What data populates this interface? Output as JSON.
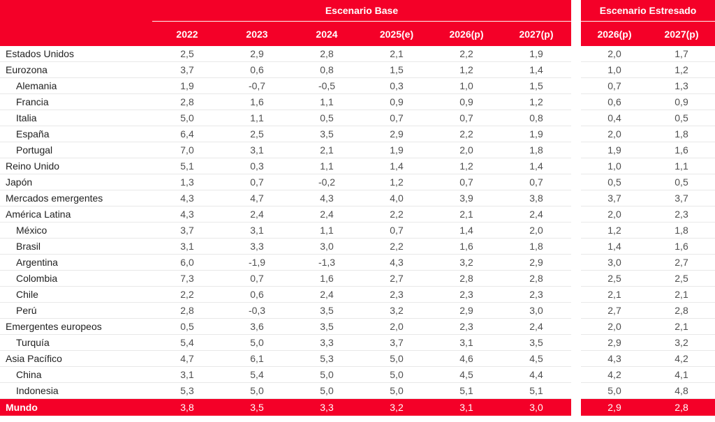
{
  "header": {
    "base": {
      "title": "Escenario Base",
      "years": [
        "2022",
        "2023",
        "2024",
        "2025(e)",
        "2026(p)",
        "2027(p)"
      ]
    },
    "stressed": {
      "title": "Escenario Estresado",
      "years": [
        "2026(p)",
        "2027(p)"
      ]
    }
  },
  "table": {
    "rows": [
      {
        "label": "Estados Unidos",
        "indent": false,
        "base": [
          "2,5",
          "2,9",
          "2,8",
          "2,1",
          "2,2",
          "1,9"
        ],
        "stressed": [
          "2,0",
          "1,7"
        ]
      },
      {
        "label": "Eurozona",
        "indent": false,
        "base": [
          "3,7",
          "0,6",
          "0,8",
          "1,5",
          "1,2",
          "1,4"
        ],
        "stressed": [
          "1,0",
          "1,2"
        ]
      },
      {
        "label": "Alemania",
        "indent": true,
        "base": [
          "1,9",
          "-0,7",
          "-0,5",
          "0,3",
          "1,0",
          "1,5"
        ],
        "stressed": [
          "0,7",
          "1,3"
        ]
      },
      {
        "label": "Francia",
        "indent": true,
        "base": [
          "2,8",
          "1,6",
          "1,1",
          "0,9",
          "0,9",
          "1,2"
        ],
        "stressed": [
          "0,6",
          "0,9"
        ]
      },
      {
        "label": "Italia",
        "indent": true,
        "base": [
          "5,0",
          "1,1",
          "0,5",
          "0,7",
          "0,7",
          "0,8"
        ],
        "stressed": [
          "0,4",
          "0,5"
        ]
      },
      {
        "label": "España",
        "indent": true,
        "base": [
          "6,4",
          "2,5",
          "3,5",
          "2,9",
          "2,2",
          "1,9"
        ],
        "stressed": [
          "2,0",
          "1,8"
        ]
      },
      {
        "label": "Portugal",
        "indent": true,
        "base": [
          "7,0",
          "3,1",
          "2,1",
          "1,9",
          "2,0",
          "1,8"
        ],
        "stressed": [
          "1,9",
          "1,6"
        ]
      },
      {
        "label": "Reino Unido",
        "indent": false,
        "base": [
          "5,1",
          "0,3",
          "1,1",
          "1,4",
          "1,2",
          "1,4"
        ],
        "stressed": [
          "1,0",
          "1,1"
        ]
      },
      {
        "label": "Japón",
        "indent": false,
        "base": [
          "1,3",
          "0,7",
          "-0,2",
          "1,2",
          "0,7",
          "0,7"
        ],
        "stressed": [
          "0,5",
          "0,5"
        ]
      },
      {
        "label": "Mercados emergentes",
        "indent": false,
        "base": [
          "4,3",
          "4,7",
          "4,3",
          "4,0",
          "3,9",
          "3,8"
        ],
        "stressed": [
          "3,7",
          "3,7"
        ]
      },
      {
        "label": "América Latina",
        "indent": false,
        "base": [
          "4,3",
          "2,4",
          "2,4",
          "2,2",
          "2,1",
          "2,4"
        ],
        "stressed": [
          "2,0",
          "2,3"
        ]
      },
      {
        "label": "México",
        "indent": true,
        "base": [
          "3,7",
          "3,1",
          "1,1",
          "0,7",
          "1,4",
          "2,0"
        ],
        "stressed": [
          "1,2",
          "1,8"
        ]
      },
      {
        "label": "Brasil",
        "indent": true,
        "base": [
          "3,1",
          "3,3",
          "3,0",
          "2,2",
          "1,6",
          "1,8"
        ],
        "stressed": [
          "1,4",
          "1,6"
        ]
      },
      {
        "label": "Argentina",
        "indent": true,
        "base": [
          "6,0",
          "-1,9",
          "-1,3",
          "4,3",
          "3,2",
          "2,9"
        ],
        "stressed": [
          "3,0",
          "2,7"
        ]
      },
      {
        "label": "Colombia",
        "indent": true,
        "base": [
          "7,3",
          "0,7",
          "1,6",
          "2,7",
          "2,8",
          "2,8"
        ],
        "stressed": [
          "2,5",
          "2,5"
        ]
      },
      {
        "label": "Chile",
        "indent": true,
        "base": [
          "2,2",
          "0,6",
          "2,4",
          "2,3",
          "2,3",
          "2,3"
        ],
        "stressed": [
          "2,1",
          "2,1"
        ]
      },
      {
        "label": "Perú",
        "indent": true,
        "base": [
          "2,8",
          "-0,3",
          "3,5",
          "3,2",
          "2,9",
          "3,0"
        ],
        "stressed": [
          "2,7",
          "2,8"
        ]
      },
      {
        "label": "Emergentes europeos",
        "indent": false,
        "base": [
          "0,5",
          "3,6",
          "3,5",
          "2,0",
          "2,3",
          "2,4"
        ],
        "stressed": [
          "2,0",
          "2,1"
        ]
      },
      {
        "label": "Turquía",
        "indent": true,
        "base": [
          "5,4",
          "5,0",
          "3,3",
          "3,7",
          "3,1",
          "3,5"
        ],
        "stressed": [
          "2,9",
          "3,2"
        ]
      },
      {
        "label": "Asia Pacífico",
        "indent": false,
        "base": [
          "4,7",
          "6,1",
          "5,3",
          "5,0",
          "4,6",
          "4,5"
        ],
        "stressed": [
          "4,3",
          "4,2"
        ]
      },
      {
        "label": "China",
        "indent": true,
        "base": [
          "3,1",
          "5,4",
          "5,0",
          "5,0",
          "4,5",
          "4,4"
        ],
        "stressed": [
          "4,2",
          "4,1"
        ]
      },
      {
        "label": "Indonesia",
        "indent": true,
        "base": [
          "5,3",
          "5,0",
          "5,0",
          "5,0",
          "5,1",
          "5,1"
        ],
        "stressed": [
          "5,0",
          "4,8"
        ]
      }
    ],
    "total": {
      "label": "Mundo",
      "base": [
        "3,8",
        "3,5",
        "3,3",
        "3,2",
        "3,1",
        "3,0"
      ],
      "stressed": [
        "2,9",
        "2,8"
      ]
    }
  },
  "colors": {
    "accent_red": "#f40028",
    "separator": "#e8e8e8",
    "label_text": "#1f1f1f",
    "value_text": "#4f4f4f",
    "header_text": "#ffffff"
  },
  "chart_data": {
    "type": "table",
    "title": "",
    "column_groups": [
      {
        "label": "Escenario Base",
        "columns": [
          "2022",
          "2023",
          "2024",
          "2025(e)",
          "2026(p)",
          "2027(p)"
        ]
      },
      {
        "label": "Escenario Estresado",
        "columns": [
          "2026(p)",
          "2027(p)"
        ]
      }
    ],
    "rows": [
      {
        "label": "Estados Unidos",
        "base": [
          2.5,
          2.9,
          2.8,
          2.1,
          2.2,
          1.9
        ],
        "stressed": [
          2.0,
          1.7
        ]
      },
      {
        "label": "Eurozona",
        "base": [
          3.7,
          0.6,
          0.8,
          1.5,
          1.2,
          1.4
        ],
        "stressed": [
          1.0,
          1.2
        ]
      },
      {
        "label": "Alemania",
        "base": [
          1.9,
          -0.7,
          -0.5,
          0.3,
          1.0,
          1.5
        ],
        "stressed": [
          0.7,
          1.3
        ]
      },
      {
        "label": "Francia",
        "base": [
          2.8,
          1.6,
          1.1,
          0.9,
          0.9,
          1.2
        ],
        "stressed": [
          0.6,
          0.9
        ]
      },
      {
        "label": "Italia",
        "base": [
          5.0,
          1.1,
          0.5,
          0.7,
          0.7,
          0.8
        ],
        "stressed": [
          0.4,
          0.5
        ]
      },
      {
        "label": "España",
        "base": [
          6.4,
          2.5,
          3.5,
          2.9,
          2.2,
          1.9
        ],
        "stressed": [
          2.0,
          1.8
        ]
      },
      {
        "label": "Portugal",
        "base": [
          7.0,
          3.1,
          2.1,
          1.9,
          2.0,
          1.8
        ],
        "stressed": [
          1.9,
          1.6
        ]
      },
      {
        "label": "Reino Unido",
        "base": [
          5.1,
          0.3,
          1.1,
          1.4,
          1.2,
          1.4
        ],
        "stressed": [
          1.0,
          1.1
        ]
      },
      {
        "label": "Japón",
        "base": [
          1.3,
          0.7,
          -0.2,
          1.2,
          0.7,
          0.7
        ],
        "stressed": [
          0.5,
          0.5
        ]
      },
      {
        "label": "Mercados emergentes",
        "base": [
          4.3,
          4.7,
          4.3,
          4.0,
          3.9,
          3.8
        ],
        "stressed": [
          3.7,
          3.7
        ]
      },
      {
        "label": "América Latina",
        "base": [
          4.3,
          2.4,
          2.4,
          2.2,
          2.1,
          2.4
        ],
        "stressed": [
          2.0,
          2.3
        ]
      },
      {
        "label": "México",
        "base": [
          3.7,
          3.1,
          1.1,
          0.7,
          1.4,
          2.0
        ],
        "stressed": [
          1.2,
          1.8
        ]
      },
      {
        "label": "Brasil",
        "base": [
          3.1,
          3.3,
          3.0,
          2.2,
          1.6,
          1.8
        ],
        "stressed": [
          1.4,
          1.6
        ]
      },
      {
        "label": "Argentina",
        "base": [
          6.0,
          -1.9,
          -1.3,
          4.3,
          3.2,
          2.9
        ],
        "stressed": [
          3.0,
          2.7
        ]
      },
      {
        "label": "Colombia",
        "base": [
          7.3,
          0.7,
          1.6,
          2.7,
          2.8,
          2.8
        ],
        "stressed": [
          2.5,
          2.5
        ]
      },
      {
        "label": "Chile",
        "base": [
          2.2,
          0.6,
          2.4,
          2.3,
          2.3,
          2.3
        ],
        "stressed": [
          2.1,
          2.1
        ]
      },
      {
        "label": "Perú",
        "base": [
          2.8,
          -0.3,
          3.5,
          3.2,
          2.9,
          3.0
        ],
        "stressed": [
          2.7,
          2.8
        ]
      },
      {
        "label": "Emergentes europeos",
        "base": [
          0.5,
          3.6,
          3.5,
          2.0,
          2.3,
          2.4
        ],
        "stressed": [
          2.0,
          2.1
        ]
      },
      {
        "label": "Turquía",
        "base": [
          5.4,
          5.0,
          3.3,
          3.7,
          3.1,
          3.5
        ],
        "stressed": [
          2.9,
          3.2
        ]
      },
      {
        "label": "Asia Pacífico",
        "base": [
          4.7,
          6.1,
          5.3,
          5.0,
          4.6,
          4.5
        ],
        "stressed": [
          4.3,
          4.2
        ]
      },
      {
        "label": "China",
        "base": [
          3.1,
          5.4,
          5.0,
          5.0,
          4.5,
          4.4
        ],
        "stressed": [
          4.2,
          4.1
        ]
      },
      {
        "label": "Indonesia",
        "base": [
          5.3,
          5.0,
          5.0,
          5.0,
          5.1,
          5.1
        ],
        "stressed": [
          5.0,
          4.8
        ]
      },
      {
        "label": "Mundo",
        "base": [
          3.8,
          3.5,
          3.3,
          3.2,
          3.1,
          3.0
        ],
        "stressed": [
          2.9,
          2.8
        ]
      }
    ]
  }
}
